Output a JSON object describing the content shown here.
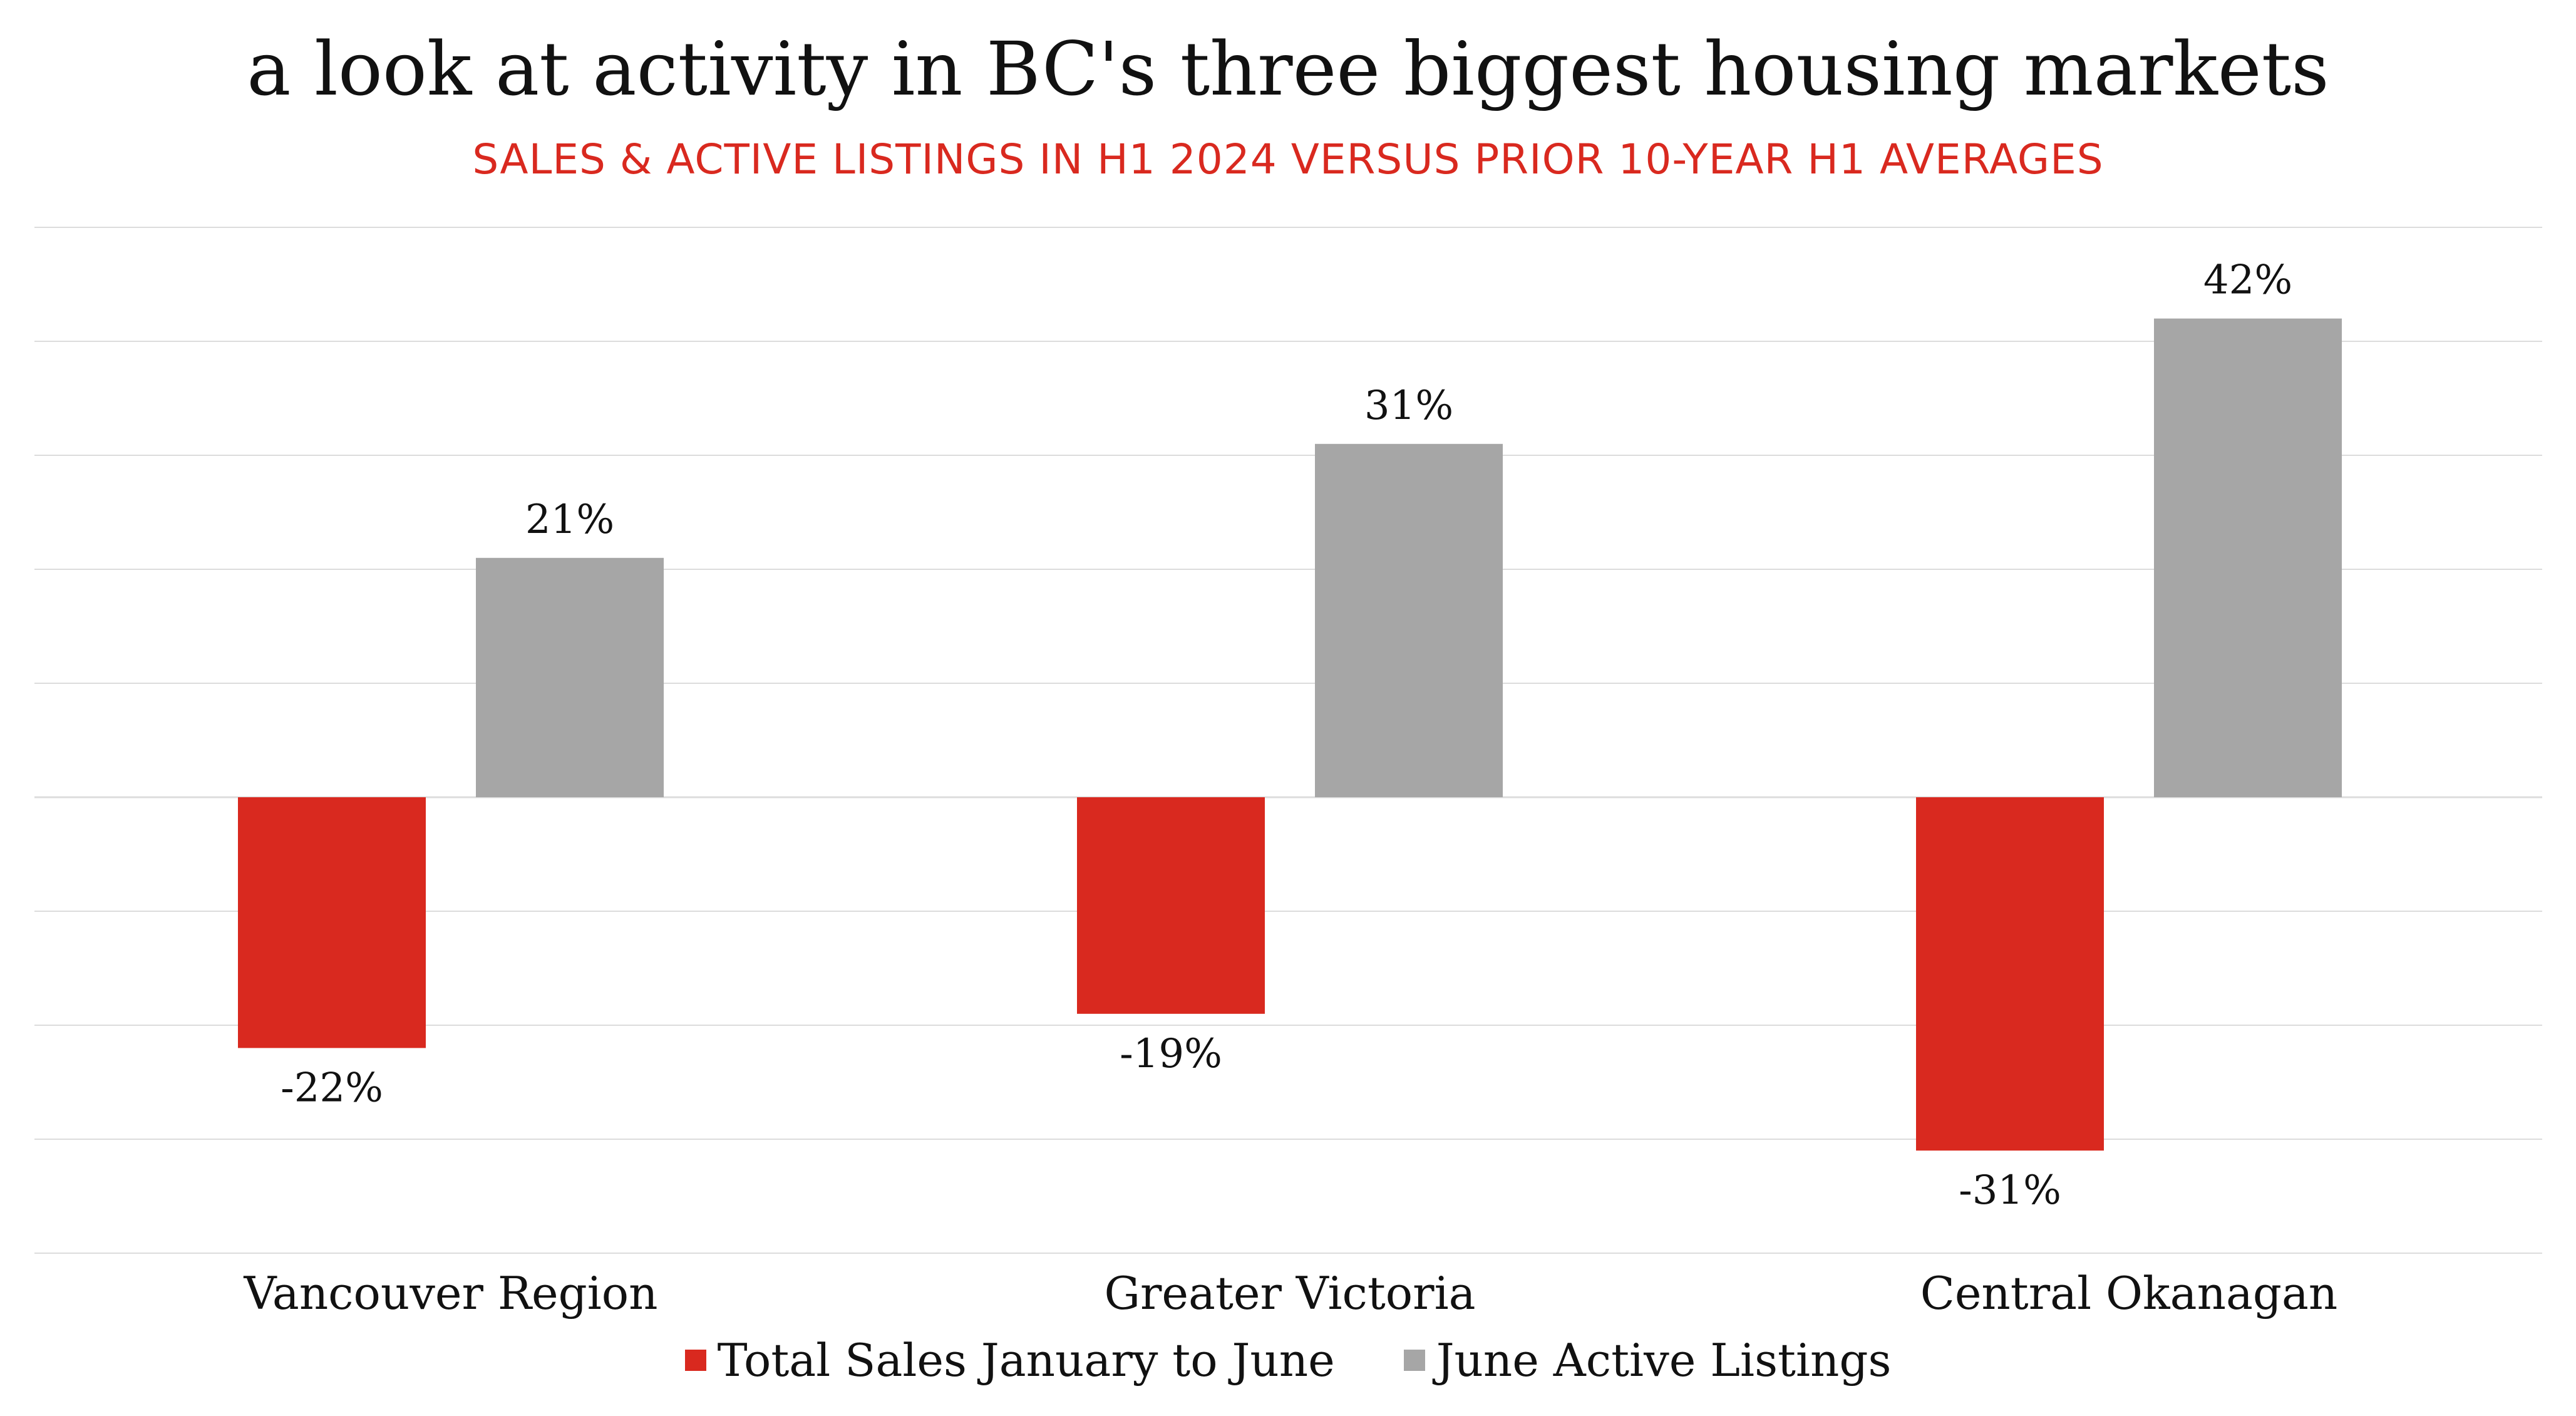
{
  "header": {
    "title": "a look at activity in BC's three biggest housing markets",
    "subtitle": "SALES & ACTIVE LISTINGS IN H1 2024 VERSUS PRIOR 10-YEAR H1 AVERAGES"
  },
  "colors": {
    "sales": "#d9291f",
    "listings": "#a6a6a6",
    "grid": "#dcdcdc"
  },
  "chart_data": {
    "type": "bar",
    "title": "a look at activity in BC's three biggest housing markets",
    "subtitle": "SALES & ACTIVE LISTINGS IN H1 2024 VERSUS PRIOR 10-YEAR H1 AVERAGES",
    "categories": [
      "Vancouver Region",
      "Greater Victoria",
      "Central Okanagan"
    ],
    "series": [
      {
        "name": "Total Sales January to June",
        "values": [
          -22,
          -19,
          -31
        ],
        "labels": [
          "-22%",
          "-19%",
          "-31%"
        ]
      },
      {
        "name": "June Active Listings",
        "values": [
          21,
          31,
          42
        ],
        "labels": [
          "21%",
          "31%",
          "42%"
        ]
      }
    ],
    "ylim": [
      -40,
      50
    ],
    "grid": true,
    "legend": "bottom",
    "xlabel": "",
    "ylabel": ""
  }
}
